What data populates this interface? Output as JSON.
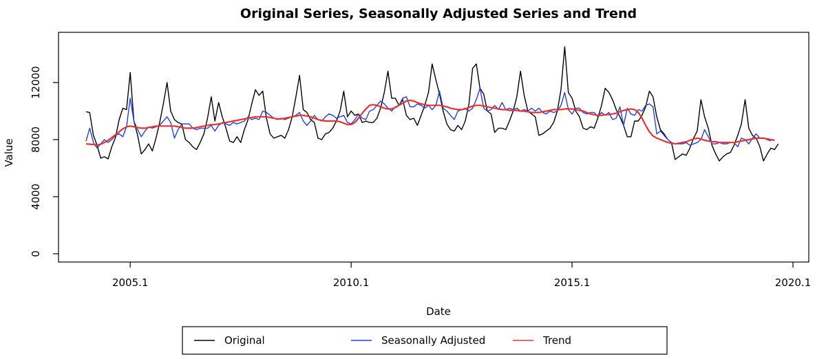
{
  "chart_data": {
    "type": "line",
    "title": "Original Series, Seasonally Adjusted Series and Trend",
    "xlabel": "Date",
    "ylabel": "Value",
    "xlim": [
      2004.0,
      2020.0
    ],
    "ylim": [
      0,
      14000
    ],
    "x_ticks": [
      2005.0,
      2010.0,
      2015.0,
      2020.0
    ],
    "x_tick_labels": [
      "2005.1",
      "2010.1",
      "2015.1",
      "2020.1"
    ],
    "y_ticks": [
      0,
      4000,
      8000,
      12000
    ],
    "y_tick_labels": [
      "0",
      "4000",
      "8000",
      "12000"
    ],
    "x_start": 2004.0,
    "x_step": 0.0833333,
    "grid": false,
    "legend_position": "bottom",
    "series": [
      {
        "name": "Original",
        "color": "#000000",
        "values": [
          9950,
          9900,
          8300,
          7600,
          6700,
          6800,
          6650,
          7500,
          8150,
          9400,
          10200,
          10100,
          12700,
          9300,
          8300,
          7000,
          7300,
          7700,
          7200,
          8100,
          9200,
          10500,
          12000,
          10000,
          9400,
          9200,
          9100,
          8000,
          7800,
          7500,
          7300,
          7800,
          8400,
          9500,
          11000,
          9300,
          10600,
          9600,
          8800,
          7900,
          7800,
          8200,
          7800,
          8700,
          9400,
          10500,
          11500,
          11100,
          11400,
          9500,
          8400,
          8100,
          8200,
          8300,
          8100,
          8700,
          9600,
          11000,
          12500,
          10100,
          9900,
          9400,
          9200,
          8100,
          8000,
          8400,
          8500,
          8800,
          9300,
          10000,
          11400,
          9600,
          10000,
          9700,
          9800,
          9200,
          9300,
          9200,
          9200,
          9500,
          10200,
          11300,
          12800,
          10900,
          10900,
          10400,
          10800,
          9700,
          9400,
          9500,
          9000,
          9700,
          10400,
          11300,
          13300,
          12200,
          11200,
          10000,
          9100,
          8700,
          8600,
          9000,
          8700,
          9300,
          10500,
          13000,
          13300,
          11600,
          11200,
          10000,
          9800,
          8500,
          8800,
          8800,
          8700,
          9300,
          10000,
          11000,
          12800,
          11100,
          10000,
          9800,
          9600,
          8300,
          8400,
          8600,
          8800,
          9200,
          10000,
          11500,
          14500,
          11300,
          10900,
          10000,
          9600,
          8800,
          8700,
          8900,
          8800,
          9500,
          10400,
          11600,
          11300,
          10800,
          10100,
          9600,
          9000,
          8200,
          8200,
          9300,
          9300,
          9700,
          10300,
          11400,
          11000,
          9600,
          8700,
          8400,
          8000,
          7800,
          6600,
          6800,
          7000,
          6900,
          7400,
          8100,
          8600,
          10800,
          9600,
          8800,
          7600,
          7000,
          6500,
          6800,
          7000,
          7100,
          7600,
          8300,
          9100,
          10800,
          8800,
          8300,
          8100,
          7500,
          6500,
          7000,
          7400,
          7300,
          7700
        ]
      },
      {
        "name": "Seasonally Adjusted",
        "color": "#1f3ff0",
        "values": [
          7900,
          8800,
          7800,
          7400,
          7700,
          8000,
          7800,
          8000,
          8300,
          8400,
          8200,
          8900,
          10900,
          9300,
          8700,
          8200,
          8600,
          8900,
          8800,
          8900,
          9000,
          9300,
          9600,
          9200,
          8100,
          8700,
          9100,
          9100,
          9100,
          8800,
          8700,
          8800,
          8800,
          8800,
          9000,
          8600,
          9000,
          9200,
          9100,
          9000,
          9200,
          9100,
          9200,
          9300,
          9600,
          9400,
          9500,
          9400,
          10000,
          9900,
          9700,
          9500,
          9400,
          9500,
          9400,
          9500,
          9600,
          9700,
          9900,
          9300,
          9000,
          9300,
          9700,
          9400,
          9300,
          9600,
          9800,
          9700,
          9500,
          9600,
          9700,
          9200,
          9100,
          9400,
          9800,
          9500,
          9400,
          10000,
          10100,
          10400,
          10700,
          10500,
          10200,
          10000,
          10300,
          10400,
          10900,
          11000,
          10300,
          10300,
          10500,
          10400,
          10200,
          10400,
          10100,
          10400,
          11400,
          10200,
          10000,
          9700,
          9400,
          10000,
          10100,
          10200,
          10000,
          10200,
          10800,
          11600,
          10200,
          10000,
          10100,
          10400,
          10100,
          10600,
          10100,
          10200,
          10100,
          10200,
          10000,
          10100,
          10000,
          10200,
          10000,
          10200,
          9900,
          9800,
          10000,
          9900,
          10000,
          10400,
          11300,
          10100,
          9800,
          10200,
          10200,
          9900,
          9800,
          9900,
          9900,
          9600,
          9900,
          9700,
          9900,
          9400,
          9500,
          10300,
          9000,
          10200,
          9800,
          9700,
          10100,
          10000,
          10400,
          10500,
          10300,
          8400,
          8600,
          8300,
          8000,
          7800,
          7700,
          7700,
          7700,
          7800,
          7600,
          7700,
          7800,
          8000,
          8700,
          8200,
          7700,
          7700,
          7800,
          7700,
          7700,
          7800,
          7800,
          7500,
          8100,
          8000,
          7700,
          8100,
          8400,
          8100,
          8100,
          8000,
          7900
        ]
      },
      {
        "name": "Trend",
        "color": "#e8322c",
        "values": [
          7700,
          7680,
          7650,
          7620,
          7680,
          7800,
          7950,
          8150,
          8350,
          8550,
          8750,
          8900,
          8950,
          8900,
          8850,
          8800,
          8800,
          8850,
          8900,
          8950,
          8950,
          8950,
          8950,
          8950,
          8950,
          8900,
          8850,
          8800,
          8800,
          8800,
          8850,
          8900,
          8950,
          9000,
          9050,
          9050,
          9100,
          9150,
          9200,
          9250,
          9300,
          9350,
          9400,
          9450,
          9500,
          9550,
          9600,
          9600,
          9600,
          9600,
          9550,
          9500,
          9450,
          9450,
          9500,
          9550,
          9600,
          9650,
          9700,
          9700,
          9650,
          9600,
          9500,
          9400,
          9350,
          9300,
          9300,
          9300,
          9300,
          9250,
          9150,
          9050,
          9050,
          9200,
          9500,
          9850,
          10150,
          10400,
          10450,
          10400,
          10300,
          10200,
          10150,
          10150,
          10250,
          10400,
          10550,
          10700,
          10750,
          10700,
          10600,
          10500,
          10450,
          10400,
          10400,
          10400,
          10400,
          10350,
          10300,
          10200,
          10150,
          10100,
          10100,
          10150,
          10250,
          10350,
          10400,
          10400,
          10350,
          10300,
          10250,
          10200,
          10150,
          10100,
          10100,
          10050,
          10050,
          10050,
          10000,
          10000,
          9950,
          9900,
          9900,
          9900,
          9950,
          10000,
          10050,
          10100,
          10100,
          10100,
          10150,
          10150,
          10150,
          10100,
          10050,
          10000,
          9900,
          9800,
          9750,
          9700,
          9700,
          9750,
          9750,
          9800,
          9850,
          9950,
          10050,
          10100,
          10150,
          10100,
          9900,
          9500,
          9000,
          8550,
          8250,
          8100,
          8000,
          7900,
          7800,
          7750,
          7700,
          7750,
          7800,
          7850,
          7950,
          8050,
          8100,
          8050,
          7950,
          7900,
          7850,
          7850,
          7800,
          7800,
          7800,
          7800,
          7800,
          7850,
          7900,
          7950,
          8000,
          8050,
          8100,
          8100,
          8100,
          8050,
          8000,
          7950
        ]
      }
    ]
  }
}
